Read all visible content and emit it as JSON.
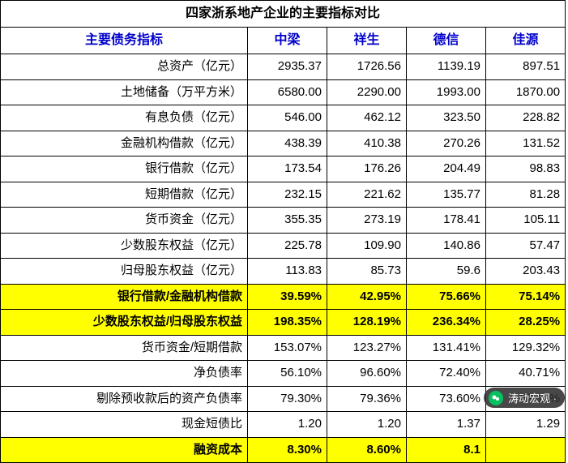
{
  "title": "四家浙系地产企业的主要指标对比",
  "header": {
    "metric": "主要债务指标",
    "cols": [
      "中梁",
      "祥生",
      "德信",
      "佳源"
    ]
  },
  "rows": [
    {
      "label": "总资产（亿元）",
      "v": [
        "2935.37",
        "1726.56",
        "1139.19",
        "897.51"
      ],
      "hl": false
    },
    {
      "label": "土地储备（万平方米）",
      "v": [
        "6580.00",
        "2290.00",
        "1993.00",
        "1870.00"
      ],
      "hl": false
    },
    {
      "label": "有息负债（亿元）",
      "v": [
        "546.00",
        "462.12",
        "323.50",
        "228.82"
      ],
      "hl": false
    },
    {
      "label": "金融机构借款（亿元）",
      "v": [
        "438.39",
        "410.38",
        "270.26",
        "131.52"
      ],
      "hl": false
    },
    {
      "label": "银行借款（亿元）",
      "v": [
        "173.54",
        "176.26",
        "204.49",
        "98.83"
      ],
      "hl": false
    },
    {
      "label": "短期借款（亿元）",
      "v": [
        "232.15",
        "221.62",
        "135.77",
        "81.28"
      ],
      "hl": false
    },
    {
      "label": "货币资金（亿元）",
      "v": [
        "355.35",
        "273.19",
        "178.41",
        "105.11"
      ],
      "hl": false
    },
    {
      "label": "少数股东权益（亿元）",
      "v": [
        "225.78",
        "109.90",
        "140.86",
        "57.47"
      ],
      "hl": false
    },
    {
      "label": "归母股东权益（亿元）",
      "v": [
        "113.83",
        "85.73",
        "59.6",
        "203.43"
      ],
      "hl": false
    },
    {
      "label": "银行借款/金融机构借款",
      "v": [
        "39.59%",
        "42.95%",
        "75.66%",
        "75.14%"
      ],
      "hl": true
    },
    {
      "label": "少数股东权益/归母股东权益",
      "v": [
        "198.35%",
        "128.19%",
        "236.34%",
        "28.25%"
      ],
      "hl": true
    },
    {
      "label": "货币资金/短期借款",
      "v": [
        "153.07%",
        "123.27%",
        "131.41%",
        "129.32%"
      ],
      "hl": false
    },
    {
      "label": "净负债率",
      "v": [
        "56.10%",
        "96.60%",
        "72.40%",
        "40.71%"
      ],
      "hl": false
    },
    {
      "label": "剔除预收款后的资产负债率",
      "v": [
        "79.30%",
        "79.36%",
        "73.60%",
        "62.11%"
      ],
      "hl": false
    },
    {
      "label": "现金短债比",
      "v": [
        "1.20",
        "1.20",
        "1.37",
        "1.29"
      ],
      "hl": false
    },
    {
      "label": "融资成本",
      "v": [
        "8.30%",
        "8.60%",
        "8.1",
        ""
      ],
      "hl": true
    }
  ],
  "watermark": {
    "text": "涛动宏观 ·"
  },
  "colors": {
    "highlight": "#ffff00",
    "header_text": "#0000cc",
    "border": "#000000",
    "bg": "#ffffff"
  }
}
